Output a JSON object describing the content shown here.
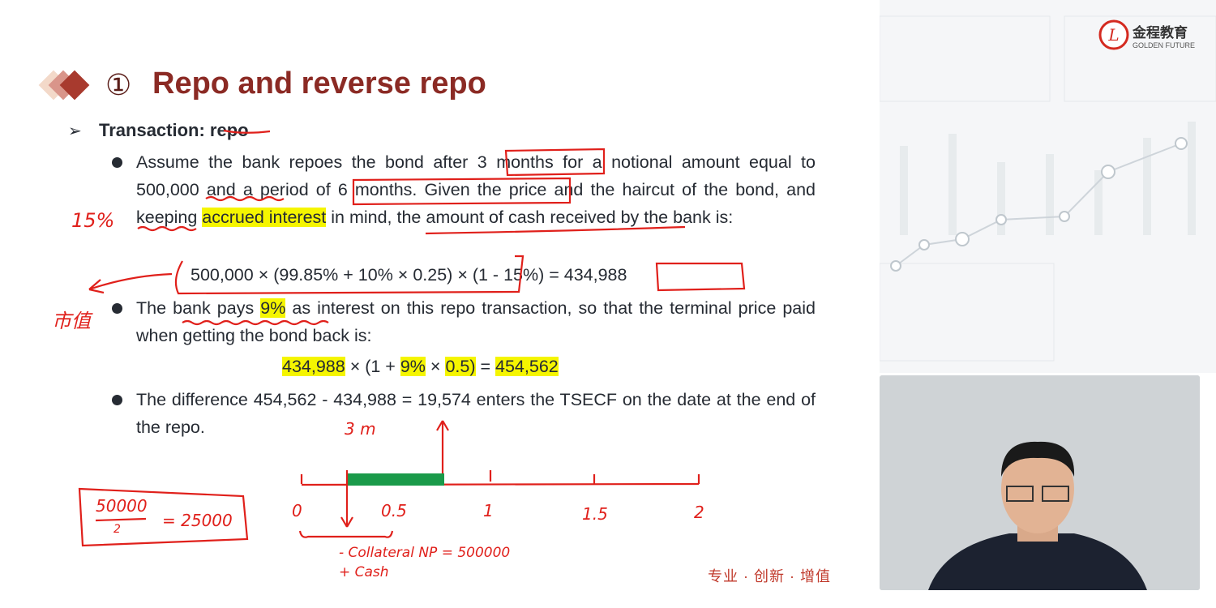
{
  "slide": {
    "number_glyph": "①",
    "title": "Repo and reverse repo",
    "subtitle": "Transaction: repo",
    "bullet1": {
      "pre": "Assume the bank repoes the bond after 3 months for a notional amount equal to 500,000 and a period of 6 months. Given the price and the haircut of the bond, and keeping ",
      "hl": "accrued interest",
      "post": " in mind, the amount of cash received by the bank is:"
    },
    "formula1": "500,000 × (99.85% + 10% × 0.25) × (1 - 15%) = 434,988",
    "bullet2": {
      "pre": "The bank pays ",
      "hl": "9%",
      "post": " as interest on this repo transaction, so that the terminal price paid when getting the bond back is:"
    },
    "formula2": {
      "a": "434,988",
      "b": " × (1 + ",
      "c": "9%",
      "d": " × ",
      "e": "0.5)",
      "f": " = ",
      "g": "454,562"
    },
    "bullet3": "The difference 454,562 - 434,988 = 19,574 enters the TSECF on the date at the end of the repo.",
    "footer": "专业 · 创新 · 增值"
  },
  "logo": {
    "cn": "金程教育",
    "en": "GOLDEN FUTURE"
  },
  "annotations": {
    "haircut": "15%",
    "market_value": "市值",
    "three_m": "3 m",
    "calc_num": "50000",
    "calc_den": "2",
    "calc_result": "= 25000",
    "ticks": [
      "0",
      "0.5",
      "1",
      "1.5",
      "2"
    ],
    "collateral": "- Collateral  NP = 500000",
    "cash": "+ Cash"
  },
  "colors": {
    "title": "#8b2a24",
    "ink": "#e0201b",
    "highlight": "#f5f500",
    "timeline_fill": "#1a9a4a"
  }
}
